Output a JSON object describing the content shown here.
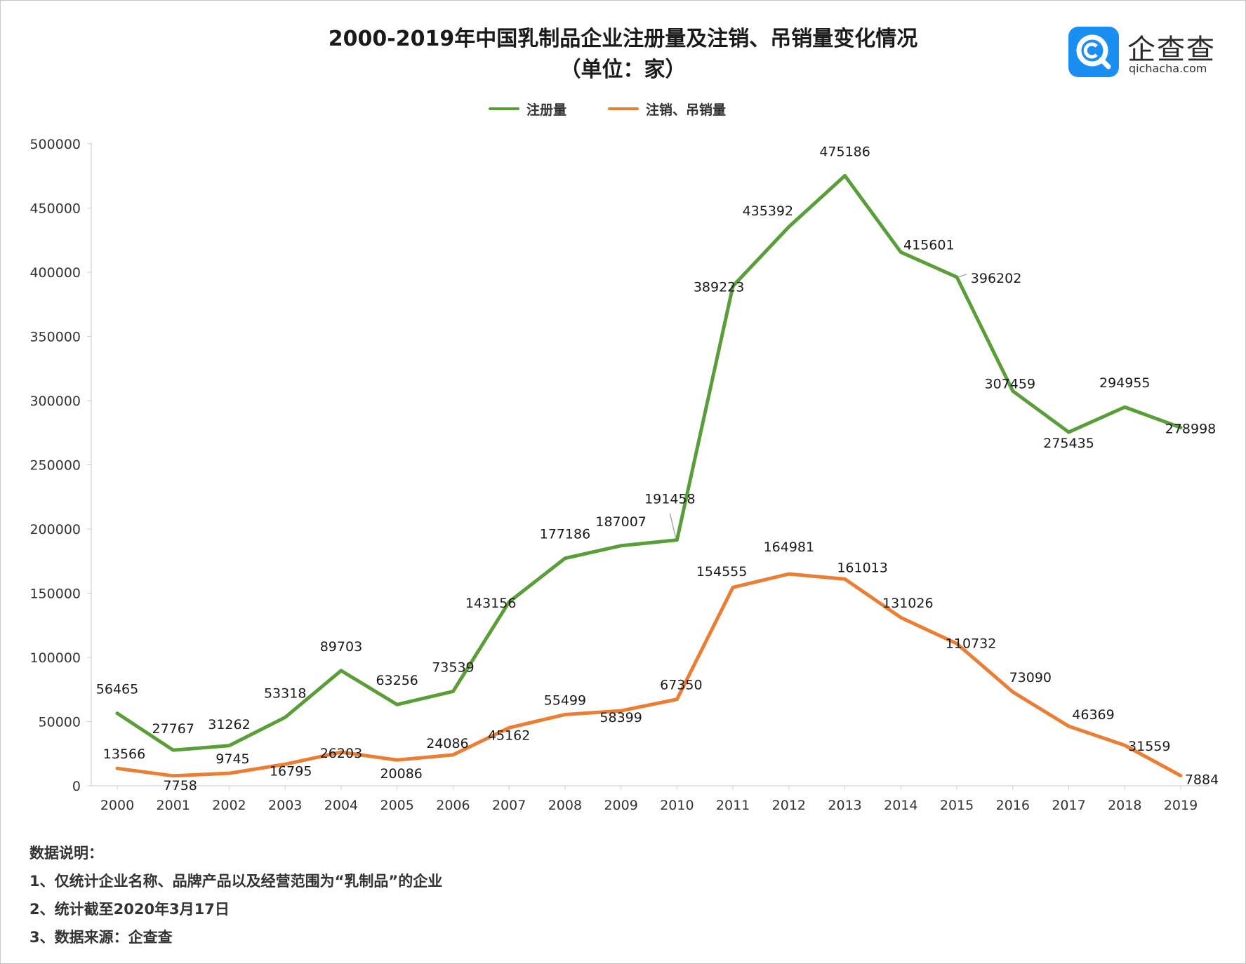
{
  "title": "2000-2019年中国乳制品企业注册量及注销、吊销量变化情况",
  "subtitle": "（单位：家）",
  "logo": {
    "name": "企查查",
    "domain": "qichacha.com",
    "icon": "qichacha-logo-icon",
    "color": "#1b8ef2"
  },
  "notes": {
    "heading": "数据说明：",
    "items": [
      "1、仅统计企业名称、品牌产品以及经营范围为“乳制品”的企业",
      "2、统计截至2020年3月17日",
      "3、数据来源：企查查"
    ]
  },
  "chart_data": {
    "type": "line",
    "title": "2000-2019年中国乳制品企业注册量及注销、吊销量变化情况",
    "subtitle": "（单位：家）",
    "xlabel": "",
    "ylabel": "",
    "ylim": [
      0,
      500000
    ],
    "yticks": [
      0,
      50000,
      100000,
      150000,
      200000,
      250000,
      300000,
      350000,
      400000,
      450000,
      500000
    ],
    "legend_position": "top-center",
    "grid": false,
    "categories": [
      "2000",
      "2001",
      "2002",
      "2003",
      "2004",
      "2005",
      "2006",
      "2007",
      "2008",
      "2009",
      "2010",
      "2011",
      "2012",
      "2013",
      "2014",
      "2015",
      "2016",
      "2017",
      "2018",
      "2019"
    ],
    "series": [
      {
        "name": "注册量",
        "color": "#5a9e3a",
        "values": [
          56465,
          27767,
          31262,
          53318,
          89703,
          63256,
          73539,
          143156,
          177186,
          187007,
          191458,
          389223,
          435392,
          475186,
          415601,
          396202,
          307459,
          275435,
          294955,
          278998
        ]
      },
      {
        "name": "注销、吊销量",
        "color": "#ea7e35",
        "values": [
          13566,
          7758,
          9745,
          16795,
          26203,
          20086,
          24086,
          45162,
          55499,
          58399,
          67350,
          154555,
          164981,
          161013,
          131026,
          110732,
          73090,
          46369,
          31559,
          7884
        ]
      }
    ]
  }
}
